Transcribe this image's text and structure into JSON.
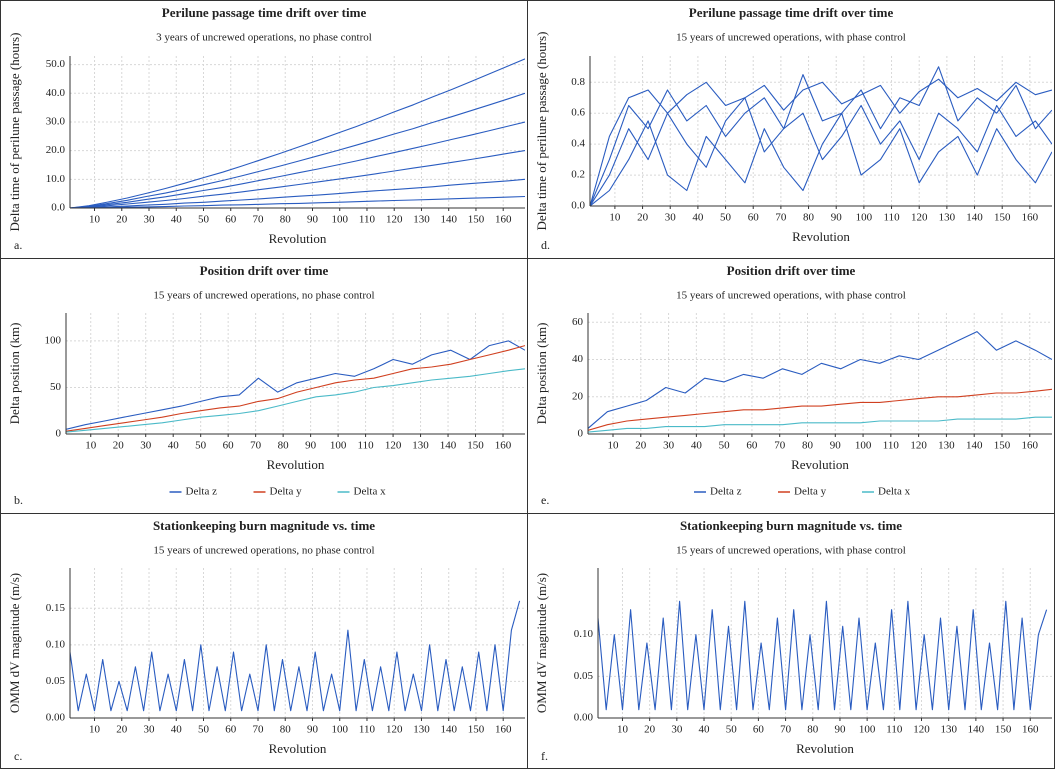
{
  "chart_data": [
    {
      "type": "line",
      "title": "Perilune passage time drift over time",
      "subtitle": "3 years of uncrewed operations, no phase control",
      "y_label": "Delta time of perilune passage (hours)",
      "x_label": "Revolution",
      "panel_label": "a.",
      "grid": true,
      "xlim": [
        1,
        168
      ],
      "xticks": [
        10,
        20,
        30,
        40,
        50,
        60,
        70,
        80,
        90,
        100,
        110,
        120,
        130,
        140,
        150,
        160
      ],
      "ylim": [
        0,
        53
      ],
      "yticks": [
        {
          "value": 0,
          "label": "0.0"
        },
        {
          "value": 10,
          "label": "10.0"
        },
        {
          "value": 20,
          "label": "20.0"
        },
        {
          "value": 30,
          "label": "30.0"
        },
        {
          "value": 40,
          "label": "40.0"
        },
        {
          "value": 50,
          "label": "50.0"
        }
      ],
      "x": [
        1,
        8,
        15,
        22,
        29,
        36,
        43,
        50,
        57,
        64,
        71,
        78,
        85,
        92,
        99,
        106,
        113,
        120,
        127,
        134,
        141,
        148,
        155,
        162,
        168
      ],
      "series": [
        {
          "color": "#2a5cc0",
          "values": [
            0,
            0.8,
            2.1,
            3.5,
            5.1,
            6.8,
            8.6,
            10.6,
            12.5,
            14.6,
            16.8,
            19.0,
            21.3,
            23.6,
            26.0,
            28.4,
            30.9,
            33.5,
            36.0,
            38.7,
            41.3,
            44.0,
            46.8,
            49.6,
            52.0
          ]
        },
        {
          "color": "#2a5cc0",
          "values": [
            0,
            0.6,
            1.6,
            2.7,
            4.0,
            5.2,
            6.6,
            8.1,
            9.6,
            11.2,
            12.9,
            14.6,
            16.4,
            18.2,
            20.0,
            21.9,
            23.8,
            25.8,
            27.7,
            29.8,
            31.8,
            33.9,
            36.0,
            38.1,
            40.0
          ]
        },
        {
          "color": "#2a5cc0",
          "values": [
            0,
            0.5,
            1.2,
            2.0,
            3.0,
            3.9,
            5.0,
            6.1,
            7.2,
            8.4,
            9.7,
            11.0,
            12.3,
            13.6,
            15.0,
            16.4,
            17.9,
            19.3,
            20.8,
            22.3,
            23.9,
            25.4,
            27.0,
            28.6,
            30.0
          ]
        },
        {
          "color": "#2a5cc0",
          "values": [
            0,
            0.3,
            0.8,
            1.4,
            2.0,
            2.6,
            3.3,
            4.1,
            4.8,
            5.6,
            6.5,
            7.3,
            8.2,
            9.1,
            10.0,
            10.9,
            11.9,
            12.9,
            13.9,
            14.9,
            15.9,
            16.9,
            18.0,
            19.1,
            20.0
          ]
        },
        {
          "color": "#2a5cc0",
          "values": [
            0,
            0.2,
            0.4,
            0.7,
            1.0,
            1.3,
            1.7,
            2.0,
            2.4,
            2.8,
            3.2,
            3.7,
            4.1,
            4.5,
            5.0,
            5.5,
            6.0,
            6.4,
            6.9,
            7.4,
            8.0,
            8.5,
            9.0,
            9.5,
            10.0
          ]
        },
        {
          "color": "#2a5cc0",
          "values": [
            0,
            0.1,
            0.2,
            0.3,
            0.4,
            0.5,
            0.7,
            0.8,
            1.0,
            1.1,
            1.3,
            1.5,
            1.6,
            1.8,
            2.0,
            2.2,
            2.4,
            2.6,
            2.8,
            3.0,
            3.2,
            3.4,
            3.6,
            3.8,
            4.0
          ]
        }
      ]
    },
    {
      "type": "line",
      "title": "Perilune passage time drift over time",
      "subtitle": "15 years of uncrewed operations, with phase control",
      "y_label": "Delta time of perilune passage (hours)",
      "x_label": "Revolution",
      "panel_label": "d.",
      "grid": true,
      "xlim": [
        1,
        168
      ],
      "xticks": [
        10,
        20,
        30,
        40,
        50,
        60,
        70,
        80,
        90,
        100,
        110,
        120,
        130,
        140,
        150,
        160
      ],
      "ylim": [
        0,
        0.97
      ],
      "yticks": [
        {
          "value": 0,
          "label": "0.0"
        },
        0.2,
        0.4,
        0.6,
        0.8
      ],
      "x": [
        1,
        8,
        15,
        22,
        29,
        36,
        43,
        50,
        57,
        64,
        71,
        78,
        85,
        92,
        99,
        106,
        113,
        120,
        127,
        134,
        141,
        148,
        155,
        162,
        168
      ],
      "series": [
        {
          "color": "#2a5cc0",
          "values": [
            0,
            0.45,
            0.7,
            0.75,
            0.6,
            0.72,
            0.8,
            0.65,
            0.7,
            0.78,
            0.62,
            0.75,
            0.8,
            0.66,
            0.72,
            0.78,
            0.6,
            0.74,
            0.82,
            0.7,
            0.76,
            0.68,
            0.8,
            0.72,
            0.75
          ]
        },
        {
          "color": "#2a5cc0",
          "values": [
            0,
            0.2,
            0.5,
            0.3,
            0.6,
            0.4,
            0.25,
            0.55,
            0.7,
            0.35,
            0.5,
            0.6,
            0.3,
            0.45,
            0.65,
            0.4,
            0.55,
            0.3,
            0.6,
            0.5,
            0.35,
            0.65,
            0.45,
            0.55,
            0.4
          ]
        },
        {
          "color": "#2a5cc0",
          "values": [
            0,
            0.1,
            0.3,
            0.55,
            0.2,
            0.1,
            0.45,
            0.3,
            0.15,
            0.5,
            0.25,
            0.1,
            0.4,
            0.6,
            0.2,
            0.3,
            0.5,
            0.15,
            0.35,
            0.45,
            0.2,
            0.5,
            0.3,
            0.15,
            0.35
          ]
        },
        {
          "color": "#2a5cc0",
          "values": [
            0,
            0.3,
            0.65,
            0.5,
            0.75,
            0.55,
            0.65,
            0.45,
            0.6,
            0.7,
            0.5,
            0.85,
            0.55,
            0.6,
            0.75,
            0.5,
            0.7,
            0.65,
            0.9,
            0.55,
            0.7,
            0.6,
            0.78,
            0.5,
            0.62
          ]
        }
      ]
    },
    {
      "type": "line",
      "title": "Position drift over time",
      "subtitle": "15 years of uncrewed operations, no phase control",
      "y_label": "Delta position (km)",
      "x_label": "Revolution",
      "panel_label": "b.",
      "grid": true,
      "legend": "bottom",
      "xlim": [
        1,
        168
      ],
      "xticks": [
        10,
        20,
        30,
        40,
        50,
        60,
        70,
        80,
        90,
        100,
        110,
        120,
        130,
        140,
        150,
        160
      ],
      "ylim": [
        0,
        130
      ],
      "yticks": [
        0,
        50,
        100
      ],
      "x": [
        1,
        8,
        15,
        22,
        29,
        36,
        43,
        50,
        57,
        64,
        71,
        78,
        85,
        92,
        99,
        106,
        113,
        120,
        127,
        134,
        141,
        148,
        155,
        162,
        168
      ],
      "series": [
        {
          "name": "Delta z",
          "color": "#2a5cc0",
          "values": [
            5,
            10,
            14,
            18,
            22,
            26,
            30,
            35,
            40,
            42,
            60,
            45,
            55,
            60,
            65,
            62,
            70,
            80,
            75,
            85,
            90,
            80,
            95,
            100,
            90
          ]
        },
        {
          "name": "Delta y",
          "color": "#d04020",
          "values": [
            3,
            6,
            9,
            12,
            15,
            18,
            22,
            25,
            28,
            30,
            35,
            38,
            45,
            50,
            55,
            58,
            60,
            65,
            70,
            72,
            75,
            80,
            85,
            90,
            95
          ]
        },
        {
          "name": "Delta x",
          "color": "#4bbac8",
          "values": [
            2,
            4,
            6,
            8,
            10,
            12,
            15,
            18,
            20,
            22,
            25,
            30,
            35,
            40,
            42,
            45,
            50,
            52,
            55,
            58,
            60,
            62,
            65,
            68,
            70
          ]
        }
      ]
    },
    {
      "type": "line",
      "title": "Position drift over time",
      "subtitle": "15 years of uncrewed operations, with phase control",
      "y_label": "Delta position (km)",
      "x_label": "Revolution",
      "panel_label": "e.",
      "grid": true,
      "legend": "bottom",
      "xlim": [
        1,
        168
      ],
      "xticks": [
        10,
        20,
        30,
        40,
        50,
        60,
        70,
        80,
        90,
        100,
        110,
        120,
        130,
        140,
        150,
        160
      ],
      "ylim": [
        0,
        65
      ],
      "yticks": [
        0,
        20,
        40,
        60
      ],
      "x": [
        1,
        8,
        15,
        22,
        29,
        36,
        43,
        50,
        57,
        64,
        71,
        78,
        85,
        92,
        99,
        106,
        113,
        120,
        127,
        134,
        141,
        148,
        155,
        162,
        168
      ],
      "series": [
        {
          "name": "Delta z",
          "color": "#2a5cc0",
          "values": [
            3,
            12,
            15,
            18,
            25,
            22,
            30,
            28,
            32,
            30,
            35,
            32,
            38,
            35,
            40,
            38,
            42,
            40,
            45,
            50,
            55,
            45,
            50,
            45,
            40
          ]
        },
        {
          "name": "Delta y",
          "color": "#d04020",
          "values": [
            2,
            5,
            7,
            8,
            9,
            10,
            11,
            12,
            13,
            13,
            14,
            15,
            15,
            16,
            17,
            17,
            18,
            19,
            20,
            20,
            21,
            22,
            22,
            23,
            24
          ]
        },
        {
          "name": "Delta x",
          "color": "#4bbac8",
          "values": [
            1,
            2,
            3,
            3,
            4,
            4,
            4,
            5,
            5,
            5,
            5,
            6,
            6,
            6,
            6,
            7,
            7,
            7,
            7,
            8,
            8,
            8,
            8,
            9,
            9
          ]
        }
      ]
    },
    {
      "type": "line",
      "title": "Stationkeeping burn magnitude vs. time",
      "subtitle": "15 years of uncrewed operations, no phase control",
      "y_label": "OMM dV magnitude (m/s)",
      "x_label": "Revolution",
      "panel_label": "c.",
      "grid": true,
      "xlim": [
        1,
        168
      ],
      "xticks": [
        10,
        20,
        30,
        40,
        50,
        60,
        70,
        80,
        90,
        100,
        110,
        120,
        130,
        140,
        150,
        160
      ],
      "ylim": [
        0,
        0.205
      ],
      "yticks": [
        {
          "value": 0,
          "label": "0.00"
        },
        0.05,
        {
          "value": 0.1,
          "label": "0.10"
        },
        0.15
      ],
      "x": [
        1,
        4,
        7,
        10,
        13,
        16,
        19,
        22,
        25,
        28,
        31,
        34,
        37,
        40,
        43,
        46,
        49,
        52,
        55,
        58,
        61,
        64,
        67,
        70,
        73,
        76,
        79,
        82,
        85,
        88,
        91,
        94,
        97,
        100,
        103,
        106,
        109,
        112,
        115,
        118,
        121,
        124,
        127,
        130,
        133,
        136,
        139,
        142,
        145,
        148,
        151,
        154,
        157,
        160,
        163,
        166
      ],
      "series": [
        {
          "color": "#2a5cc0",
          "values": [
            0.09,
            0.01,
            0.06,
            0.01,
            0.08,
            0.01,
            0.05,
            0.01,
            0.07,
            0.01,
            0.09,
            0.01,
            0.06,
            0.01,
            0.08,
            0.01,
            0.1,
            0.01,
            0.07,
            0.01,
            0.09,
            0.01,
            0.06,
            0.01,
            0.1,
            0.01,
            0.08,
            0.01,
            0.07,
            0.01,
            0.09,
            0.01,
            0.06,
            0.01,
            0.12,
            0.01,
            0.08,
            0.01,
            0.07,
            0.01,
            0.09,
            0.01,
            0.06,
            0.01,
            0.1,
            0.01,
            0.08,
            0.01,
            0.07,
            0.01,
            0.09,
            0.01,
            0.1,
            0.01,
            0.12,
            0.16
          ]
        }
      ]
    },
    {
      "type": "line",
      "title": "Stationkeeping burn magnitude vs. time",
      "subtitle": "15 years of uncrewed operations, with phase control",
      "y_label": "OMM dV magnitude (m/s)",
      "x_label": "Revolution",
      "panel_label": "f.",
      "grid": true,
      "xlim": [
        1,
        168
      ],
      "xticks": [
        10,
        20,
        30,
        40,
        50,
        60,
        70,
        80,
        90,
        100,
        110,
        120,
        130,
        140,
        150,
        160
      ],
      "ylim": [
        0,
        0.18
      ],
      "yticks": [
        {
          "value": 0,
          "label": "0.00"
        },
        0.05,
        {
          "value": 0.1,
          "label": "0.10"
        }
      ],
      "x": [
        1,
        4,
        7,
        10,
        13,
        16,
        19,
        22,
        25,
        28,
        31,
        34,
        37,
        40,
        43,
        46,
        49,
        52,
        55,
        58,
        61,
        64,
        67,
        70,
        73,
        76,
        79,
        82,
        85,
        88,
        91,
        94,
        97,
        100,
        103,
        106,
        109,
        112,
        115,
        118,
        121,
        124,
        127,
        130,
        133,
        136,
        139,
        142,
        145,
        148,
        151,
        154,
        157,
        160,
        163,
        166
      ],
      "series": [
        {
          "color": "#2a5cc0",
          "values": [
            0.12,
            0.01,
            0.1,
            0.01,
            0.13,
            0.01,
            0.09,
            0.01,
            0.12,
            0.01,
            0.14,
            0.01,
            0.1,
            0.01,
            0.13,
            0.01,
            0.11,
            0.01,
            0.14,
            0.01,
            0.09,
            0.01,
            0.12,
            0.01,
            0.13,
            0.01,
            0.1,
            0.01,
            0.14,
            0.01,
            0.11,
            0.01,
            0.12,
            0.01,
            0.09,
            0.01,
            0.13,
            0.01,
            0.14,
            0.01,
            0.1,
            0.01,
            0.12,
            0.01,
            0.11,
            0.01,
            0.13,
            0.01,
            0.09,
            0.01,
            0.14,
            0.01,
            0.12,
            0.01,
            0.1,
            0.13
          ]
        }
      ]
    }
  ]
}
